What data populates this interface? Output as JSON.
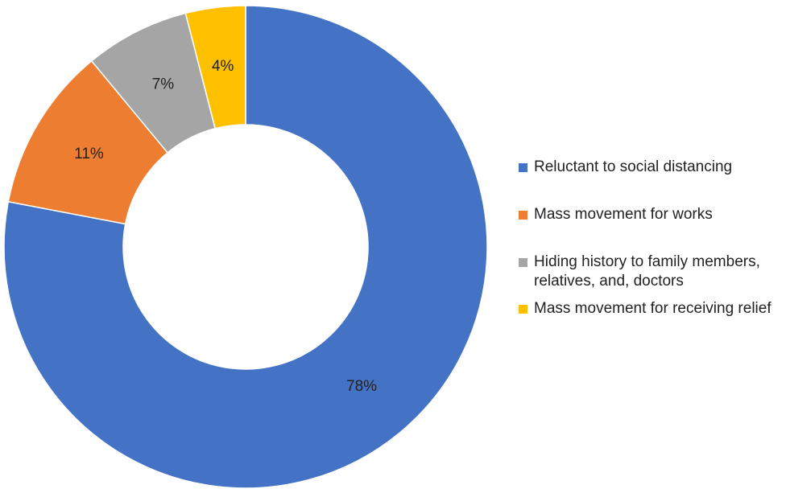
{
  "chart_data": {
    "type": "donut",
    "categories": [
      "Reluctant to social distancing",
      "Mass movement for works",
      "Hiding history to family members, relatives, and, doctors",
      "Mass movement for receiving relief"
    ],
    "values": [
      78,
      11,
      7,
      4
    ],
    "value_labels": [
      "78%",
      "11%",
      "7%",
      "4%"
    ],
    "colors": [
      "#4472c4",
      "#ed7d31",
      "#a5a5a5",
      "#ffc000"
    ],
    "legend": "right"
  }
}
